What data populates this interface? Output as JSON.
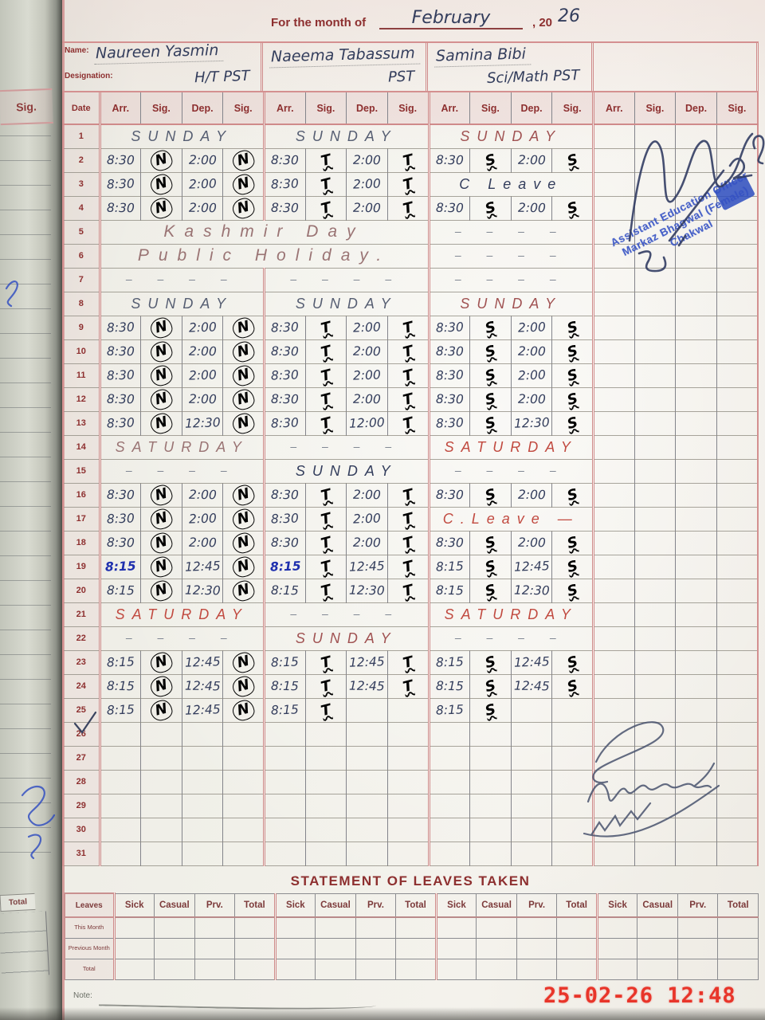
{
  "header": {
    "title_prefix": "For the month of",
    "month": "February",
    "year_printed": ", 20",
    "year_written": "26",
    "name_label": "Name:",
    "designation_label": "Designation:"
  },
  "teachers": [
    {
      "name": "Naureen Yasmin",
      "designation": "H/T  PST",
      "sig": "N"
    },
    {
      "name": "Naeema Tabassum",
      "designation": "PST",
      "sig": "T"
    },
    {
      "name": "Samina Bibi",
      "designation": "Sci/Math  PST",
      "sig": "S"
    },
    {
      "name": "",
      "designation": "",
      "sig": ""
    }
  ],
  "table": {
    "date_header": "Date",
    "group_headers": [
      "Arr.",
      "Sig.",
      "Dep.",
      "Sig."
    ],
    "rows": [
      {
        "d": "1",
        "cells": [
          {
            "day": "SUNDAY",
            "c": "pencil"
          },
          {
            "day": "SUNDAY",
            "c": "pencil"
          },
          {
            "day": "SUNDAY",
            "c": "red2"
          },
          null
        ]
      },
      {
        "d": "2",
        "cells": [
          {
            "a": "8:30",
            "as": "N",
            "dp": "2:00",
            "ds": "N"
          },
          {
            "a": "8:30",
            "as": "T",
            "dp": "2:00",
            "ds": "T"
          },
          {
            "a": "8:30",
            "as": "S",
            "dp": "2:00",
            "ds": "S"
          },
          null
        ]
      },
      {
        "d": "3",
        "cells": [
          {
            "a": "8:30",
            "as": "N",
            "dp": "2:00",
            "ds": "N"
          },
          {
            "a": "8:30",
            "as": "T",
            "dp": "2:00",
            "ds": "T"
          },
          {
            "day": "C Leave",
            "c": "ink"
          },
          null
        ]
      },
      {
        "d": "4",
        "cells": [
          {
            "a": "8:30",
            "as": "N",
            "dp": "2:00",
            "ds": "N"
          },
          {
            "a": "8:30",
            "as": "T",
            "dp": "2:00",
            "ds": "T"
          },
          {
            "a": "8:30",
            "as": "S",
            "dp": "2:00",
            "ds": "S"
          },
          null
        ]
      },
      {
        "d": "5",
        "wide": {
          "text": "Kashmir  Day",
          "c": "pinkpencil"
        },
        "cells": [
          {
            "dash": true
          },
          null
        ]
      },
      {
        "d": "6",
        "wide": {
          "text": "Public  Holiday.",
          "c": "pinkpencil"
        },
        "cells": [
          {
            "dash": true
          },
          null
        ]
      },
      {
        "d": "7",
        "cells": [
          {
            "dash": true
          },
          {
            "dash": true
          },
          {
            "dash": true
          },
          null
        ]
      },
      {
        "d": "8",
        "cells": [
          {
            "day": "SUNDAY",
            "c": "pencil"
          },
          {
            "day": "SUNDAY",
            "c": "pencil"
          },
          {
            "day": "SUNDAY",
            "c": "red2"
          },
          null
        ]
      },
      {
        "d": "9",
        "cells": [
          {
            "a": "8:30",
            "as": "N",
            "dp": "2:00",
            "ds": "N"
          },
          {
            "a": "8:30",
            "as": "T",
            "dp": "2:00",
            "ds": "T"
          },
          {
            "a": "8:30",
            "as": "S",
            "dp": "2:00",
            "ds": "S"
          },
          null
        ]
      },
      {
        "d": "10",
        "cells": [
          {
            "a": "8:30",
            "as": "N",
            "dp": "2:00",
            "ds": "N"
          },
          {
            "a": "8:30",
            "as": "T",
            "dp": "2:00",
            "ds": "T"
          },
          {
            "a": "8:30",
            "as": "S",
            "dp": "2:00",
            "ds": "S"
          },
          null
        ]
      },
      {
        "d": "11",
        "cells": [
          {
            "a": "8:30",
            "as": "N",
            "dp": "2:00",
            "ds": "N"
          },
          {
            "a": "8:30",
            "as": "T",
            "dp": "2:00",
            "ds": "T"
          },
          {
            "a": "8:30",
            "as": "S",
            "dp": "2:00",
            "ds": "S"
          },
          null
        ]
      },
      {
        "d": "12",
        "cells": [
          {
            "a": "8:30",
            "as": "N",
            "dp": "2:00",
            "ds": "N"
          },
          {
            "a": "8:30",
            "as": "T",
            "dp": "2:00",
            "ds": "T"
          },
          {
            "a": "8:30",
            "as": "S",
            "dp": "2:00",
            "ds": "S"
          },
          null
        ]
      },
      {
        "d": "13",
        "cells": [
          {
            "a": "8:30",
            "as": "N",
            "dp": "12:30",
            "ds": "N"
          },
          {
            "a": "8:30",
            "as": "T",
            "dp": "12:00",
            "ds": "T"
          },
          {
            "a": "8:30",
            "as": "S",
            "dp": "12:30",
            "ds": "S"
          },
          null
        ]
      },
      {
        "d": "14",
        "cells": [
          {
            "day": "SATURDAY",
            "c": "pinkpencil"
          },
          {
            "dash": true
          },
          {
            "day": "SATURDAY",
            "c": "red"
          },
          null
        ]
      },
      {
        "d": "15",
        "cells": [
          {
            "dash": true
          },
          {
            "day": "SUNDAY",
            "c": "ink"
          },
          {
            "dash": true
          },
          null
        ]
      },
      {
        "d": "16",
        "cells": [
          {
            "a": "8:30",
            "as": "N",
            "dp": "2:00",
            "ds": "N"
          },
          {
            "a": "8:30",
            "as": "T",
            "dp": "2:00",
            "ds": "T"
          },
          {
            "a": "8:30",
            "as": "S",
            "dp": "2:00",
            "ds": "S"
          },
          null
        ]
      },
      {
        "d": "17",
        "cells": [
          {
            "a": "8:30",
            "as": "N",
            "dp": "2:00",
            "ds": "N"
          },
          {
            "a": "8:30",
            "as": "T",
            "dp": "2:00",
            "ds": "T"
          },
          {
            "day": "C.Leave —",
            "c": "red"
          },
          null
        ]
      },
      {
        "d": "18",
        "cells": [
          {
            "a": "8:30",
            "as": "N",
            "dp": "2:00",
            "ds": "N"
          },
          {
            "a": "8:30",
            "as": "T",
            "dp": "2:00",
            "ds": "T"
          },
          {
            "a": "8:30",
            "as": "S",
            "dp": "2:00",
            "ds": "S"
          },
          null
        ]
      },
      {
        "d": "19",
        "cells": [
          {
            "a": "8:15",
            "ac": "blue",
            "as": "N",
            "dp": "12:45",
            "ds": "N"
          },
          {
            "a": "8:15",
            "ac": "blue",
            "as": "T",
            "dp": "12:45",
            "ds": "T"
          },
          {
            "a": "8:15",
            "as": "S",
            "dp": "12:45",
            "ds": "S"
          },
          null
        ]
      },
      {
        "d": "20",
        "cells": [
          {
            "a": "8:15",
            "as": "N",
            "dp": "12:30",
            "ds": "N"
          },
          {
            "a": "8:15",
            "as": "T",
            "dp": "12:30",
            "ds": "T"
          },
          {
            "a": "8:15",
            "as": "S",
            "dp": "12:30",
            "ds": "S"
          },
          null
        ]
      },
      {
        "d": "21",
        "cells": [
          {
            "day": "SATURDAY",
            "c": "red"
          },
          {
            "dash": true
          },
          {
            "day": "SATURDAY",
            "c": "red"
          },
          null
        ]
      },
      {
        "d": "22",
        "cells": [
          {
            "dash": true
          },
          {
            "day": "SUNDAY",
            "c": "red2"
          },
          {
            "dash": true
          },
          null
        ]
      },
      {
        "d": "23",
        "cells": [
          {
            "a": "8:15",
            "as": "N",
            "dp": "12:45",
            "ds": "N"
          },
          {
            "a": "8:15",
            "as": "T",
            "dp": "12:45",
            "ds": "T"
          },
          {
            "a": "8:15",
            "as": "S",
            "dp": "12:45",
            "ds": "S"
          },
          null
        ]
      },
      {
        "d": "24",
        "cells": [
          {
            "a": "8:15",
            "as": "N",
            "dp": "12:45",
            "ds": "N"
          },
          {
            "a": "8:15",
            "as": "T",
            "dp": "12:45",
            "ds": "T"
          },
          {
            "a": "8:15",
            "as": "S",
            "dp": "12:45",
            "ds": "S"
          },
          null
        ]
      },
      {
        "d": "25",
        "cells": [
          {
            "a": "8:15",
            "as": "N",
            "dp": "12:45",
            "ds": "N"
          },
          {
            "a": "8:15",
            "as": "T",
            "dp": "",
            "ds": ""
          },
          {
            "a": "8:15",
            "as": "S",
            "dp": "",
            "ds": ""
          },
          null
        ]
      },
      {
        "d": "26",
        "cells": [
          null,
          null,
          null,
          null
        ]
      },
      {
        "d": "27",
        "cells": [
          null,
          null,
          null,
          null
        ]
      },
      {
        "d": "28",
        "cells": [
          null,
          null,
          null,
          null
        ]
      },
      {
        "d": "29",
        "cells": [
          null,
          null,
          null,
          null
        ]
      },
      {
        "d": "30",
        "cells": [
          null,
          null,
          null,
          null
        ]
      },
      {
        "d": "31",
        "cells": [
          null,
          null,
          null,
          null
        ]
      }
    ]
  },
  "stamp": {
    "lines": [
      "Assistant Education Officer",
      "Markaz Bhagwal (Female)",
      "Chakwal"
    ]
  },
  "prev_page": {
    "sig_header": "Sig.",
    "bottom_header": "Total"
  },
  "leaves": {
    "title": "STATEMENT OF LEAVES TAKEN",
    "corner_label": "Leaves",
    "row_labels": [
      "This Month",
      "Previous Month",
      "Total"
    ],
    "col_headers": [
      "Sick",
      "Casual",
      "Prv.",
      "Total"
    ]
  },
  "footer": {
    "note_label": "Note:",
    "camera_timestamp": "25-02-26  12:48"
  }
}
